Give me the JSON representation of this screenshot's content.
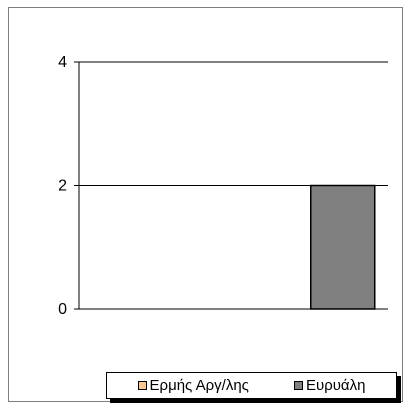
{
  "chart_data": {
    "type": "bar",
    "categories": [
      "",
      ""
    ],
    "series": [
      {
        "name": "Ερμής Αργ/λης",
        "values": [
          0,
          0
        ],
        "color": "#f5c896"
      },
      {
        "name": "Ευρυάλη",
        "values": [
          0,
          2
        ],
        "color": "#808080"
      }
    ],
    "ylim": [
      0,
      4
    ],
    "yticks": [
      "0",
      "2",
      "4"
    ],
    "grid": true,
    "legend": "bottom",
    "title": "",
    "xlabel": "",
    "ylabel": ""
  }
}
